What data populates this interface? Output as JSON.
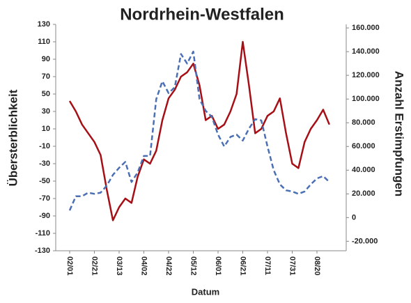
{
  "chart_data": {
    "type": "line",
    "title": "Nordrhein-Westfalen",
    "x_label": "Datum",
    "y_label": "Übersterblichkeit",
    "y2_label": "Anzahl Erstimpfungen",
    "categories": [
      "02/01",
      null,
      null,
      null,
      "02/21",
      null,
      null,
      null,
      "03/13",
      null,
      null,
      null,
      "04/02",
      null,
      null,
      null,
      "04/22",
      null,
      null,
      null,
      "05/12",
      null,
      null,
      null,
      "06/01",
      null,
      null,
      null,
      "06/21",
      null,
      null,
      null,
      "07/11",
      null,
      null,
      null,
      "07/31",
      null,
      null,
      null,
      "08/20",
      null,
      null
    ],
    "series": [
      {
        "color": "#a50f15",
        "line_style": "solid",
        "axis": "y",
        "values": [
          42,
          30,
          15,
          5,
          -5,
          -20,
          -60,
          -95,
          -80,
          -70,
          -75,
          -45,
          -25,
          -30,
          -15,
          20,
          45,
          55,
          70,
          75,
          85,
          60,
          20,
          25,
          10,
          15,
          30,
          50,
          110,
          60,
          5,
          10,
          25,
          30,
          45,
          5,
          -30,
          -35,
          -5,
          10,
          20,
          32,
          15
        ]
      },
      {
        "color": "#4a6fb5",
        "line_style": "dashed",
        "axis": "y2",
        "values": [
          6000,
          18000,
          18000,
          21000,
          20000,
          21000,
          27000,
          36000,
          42000,
          47000,
          30000,
          38000,
          52000,
          52000,
          100000,
          115000,
          105000,
          110000,
          138000,
          130000,
          140000,
          100000,
          90000,
          85000,
          70000,
          60000,
          68000,
          70000,
          65000,
          75000,
          83000,
          82000,
          60000,
          40000,
          28000,
          23000,
          22000,
          20000,
          22000,
          28000,
          33000,
          35000,
          30000
        ]
      }
    ],
    "ylim": [
      -130,
      130
    ],
    "yticks": [
      -130,
      -110,
      -90,
      -70,
      -50,
      -30,
      -10,
      10,
      30,
      50,
      70,
      90,
      110,
      130
    ],
    "y2lim": [
      -28000,
      163000
    ],
    "y2ticks": [
      {
        "value": -20000,
        "label": "-20.000"
      },
      0,
      {
        "value": 20000,
        "label": "20.000"
      },
      {
        "value": 40000,
        "label": "40.000"
      },
      {
        "value": 60000,
        "label": "60.000"
      },
      {
        "value": 80000,
        "label": "80.000"
      },
      {
        "value": 100000,
        "label": "100.000"
      },
      {
        "value": 120000,
        "label": "120.000"
      },
      {
        "value": 140000,
        "label": "140.000"
      },
      {
        "value": 160000,
        "label": "160.000"
      }
    ],
    "grid": false
  }
}
